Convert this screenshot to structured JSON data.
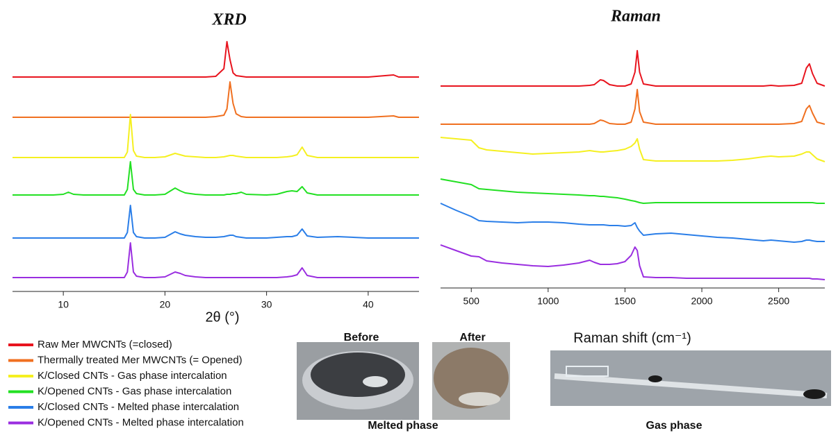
{
  "chart_data": [
    {
      "type": "line",
      "title": "XRD",
      "x_label": "2θ (°)",
      "xlim": [
        5,
        45
      ],
      "xticks": [
        10,
        20,
        30,
        40
      ],
      "x": [
        5,
        7,
        9,
        10,
        10.5,
        11,
        12,
        14,
        15,
        16,
        16.3,
        16.6,
        16.9,
        17.2,
        18,
        19,
        20,
        21,
        21.5,
        22,
        23,
        24,
        25,
        25.8,
        26.1,
        26.4,
        26.7,
        27,
        27.5,
        28,
        30,
        31,
        32,
        32.5,
        33,
        33.5,
        34,
        35,
        37,
        40,
        42.5,
        43,
        45
      ],
      "series": [
        {
          "name": "Raw Mer MWCNTs (=closed)",
          "color": "#e8141e",
          "values": [
            0,
            0,
            0,
            0,
            0,
            0,
            0,
            0,
            0,
            0,
            0,
            0,
            0,
            0,
            0,
            0,
            0,
            0,
            0,
            0,
            0,
            0,
            1,
            12,
            51,
            25,
            6,
            2,
            1,
            0,
            0,
            0,
            0,
            0,
            0,
            0,
            0,
            0,
            0,
            0,
            3,
            0,
            0
          ]
        },
        {
          "name": "Thermally treated Mer MWCNTs (= Opened)",
          "color": "#f07020",
          "values": [
            0,
            0,
            0,
            0,
            0,
            0,
            0,
            0,
            0,
            0,
            0,
            0,
            0,
            0,
            0,
            0,
            0,
            0,
            0,
            0,
            0,
            0,
            1,
            3,
            12,
            51,
            20,
            5,
            1,
            0,
            0,
            0,
            0,
            0,
            0,
            0,
            0,
            0,
            0,
            0,
            2,
            0,
            0
          ]
        },
        {
          "name": "K/Closed CNTs - Gas phase intercalation",
          "color": "#f5f020",
          "values": [
            0,
            0,
            0,
            0,
            0,
            0,
            0,
            0,
            0,
            0,
            8,
            62,
            10,
            2,
            0,
            0,
            1,
            6,
            4,
            2,
            1,
            0,
            0,
            1,
            2,
            3,
            3,
            2,
            1,
            0,
            0,
            0,
            1,
            2,
            4,
            15,
            3,
            0,
            0,
            0,
            0,
            0,
            0
          ]
        },
        {
          "name": "K/Opened CNTs - Gas phase intercalation",
          "color": "#22e022",
          "values": [
            0,
            0,
            0,
            1,
            4,
            1,
            0,
            0,
            0,
            0,
            8,
            48,
            8,
            2,
            0,
            0,
            1,
            10,
            6,
            3,
            1,
            0,
            0,
            0,
            1,
            1,
            2,
            2,
            4,
            1,
            0,
            1,
            5,
            6,
            5,
            12,
            3,
            0,
            0,
            0,
            0,
            0,
            0
          ]
        },
        {
          "name": "K/Closed CNTs - Melted phase intercalation",
          "color": "#2a7ee8",
          "values": [
            0,
            0,
            0,
            0,
            0,
            0,
            0,
            0,
            0,
            0,
            8,
            47,
            8,
            2,
            0,
            0,
            1,
            9,
            6,
            4,
            2,
            1,
            1,
            2,
            3,
            4,
            4,
            2,
            1,
            0,
            0,
            1,
            2,
            2,
            4,
            13,
            3,
            1,
            2,
            0,
            0,
            0,
            0
          ]
        },
        {
          "name": "K/Opened CNTs - Melted phase intercalation",
          "color": "#9a2ee0",
          "values": [
            0,
            0,
            0,
            0,
            0,
            0,
            0,
            0,
            0,
            0,
            8,
            50,
            8,
            2,
            0,
            0,
            1,
            8,
            6,
            3,
            1,
            0,
            0,
            0,
            0,
            0,
            0,
            0,
            0,
            0,
            0,
            0,
            1,
            2,
            4,
            14,
            3,
            0,
            0,
            0,
            0,
            0,
            0
          ]
        }
      ]
    },
    {
      "type": "line",
      "title": "Raman",
      "x_label": "Raman shift (cm⁻¹)",
      "xlim": [
        300,
        2800
      ],
      "xticks": [
        500,
        1000,
        1500,
        2000,
        2500
      ],
      "x": [
        300,
        400,
        500,
        550,
        600,
        700,
        800,
        900,
        1000,
        1100,
        1200,
        1270,
        1300,
        1340,
        1360,
        1400,
        1450,
        1500,
        1540,
        1565,
        1580,
        1595,
        1620,
        1700,
        1800,
        1900,
        2000,
        2100,
        2200,
        2300,
        2400,
        2450,
        2500,
        2600,
        2650,
        2680,
        2700,
        2720,
        2750,
        2800
      ],
      "series": [
        {
          "color": "#e8141e",
          "values": [
            0,
            0,
            0,
            0,
            0,
            0,
            0,
            0,
            0,
            0,
            0,
            1,
            2,
            9,
            8,
            2,
            0,
            0,
            3,
            20,
            51,
            20,
            3,
            0,
            0,
            0,
            0,
            0,
            0,
            0,
            0,
            1,
            0,
            1,
            4,
            26,
            32,
            18,
            4,
            0
          ]
        },
        {
          "color": "#f07020",
          "values": [
            0,
            0,
            0,
            0,
            0,
            0,
            0,
            0,
            0,
            0,
            0,
            0,
            1,
            6,
            5,
            1,
            0,
            0,
            3,
            22,
            50,
            18,
            3,
            0,
            0,
            0,
            0,
            0,
            0,
            0,
            0,
            0,
            0,
            1,
            4,
            22,
            27,
            16,
            3,
            0
          ]
        },
        {
          "color": "#f5f020",
          "values": [
            35,
            33,
            31,
            20,
            17,
            15,
            13,
            11,
            12,
            13,
            14,
            16,
            15,
            14,
            14,
            15,
            16,
            18,
            22,
            27,
            33,
            18,
            3,
            1,
            1,
            1,
            1,
            1,
            2,
            4,
            7,
            8,
            7,
            8,
            11,
            14,
            14,
            10,
            4,
            0
          ]
        },
        {
          "color": "#22e022",
          "values": [
            35,
            31,
            27,
            21,
            20,
            18,
            16,
            15,
            14,
            13,
            12,
            11,
            11,
            10,
            10,
            9,
            8,
            6,
            4,
            3,
            2,
            1,
            0,
            1,
            1,
            1,
            1,
            1,
            1,
            1,
            1,
            1,
            1,
            1,
            1,
            1,
            1,
            1,
            0,
            0
          ]
        },
        {
          "color": "#2a7ee8",
          "values": [
            55,
            45,
            36,
            30,
            29,
            28,
            27,
            28,
            28,
            27,
            25,
            24,
            24,
            24,
            24,
            23,
            23,
            22,
            23,
            27,
            20,
            15,
            9,
            11,
            12,
            10,
            8,
            6,
            5,
            3,
            1,
            2,
            1,
            -1,
            0,
            2,
            2,
            1,
            0,
            0
          ]
        },
        {
          "color": "#9a2ee0",
          "values": [
            50,
            42,
            34,
            33,
            27,
            24,
            22,
            20,
            19,
            21,
            24,
            28,
            25,
            22,
            22,
            22,
            23,
            26,
            35,
            47,
            42,
            20,
            4,
            3,
            3,
            2,
            2,
            2,
            2,
            2,
            2,
            2,
            2,
            2,
            2,
            2,
            2,
            1,
            1,
            0
          ]
        }
      ]
    }
  ],
  "photos": {
    "before": "Before",
    "after": "After",
    "melted_caption": "Melted phase",
    "gas_caption": "Gas phase"
  }
}
